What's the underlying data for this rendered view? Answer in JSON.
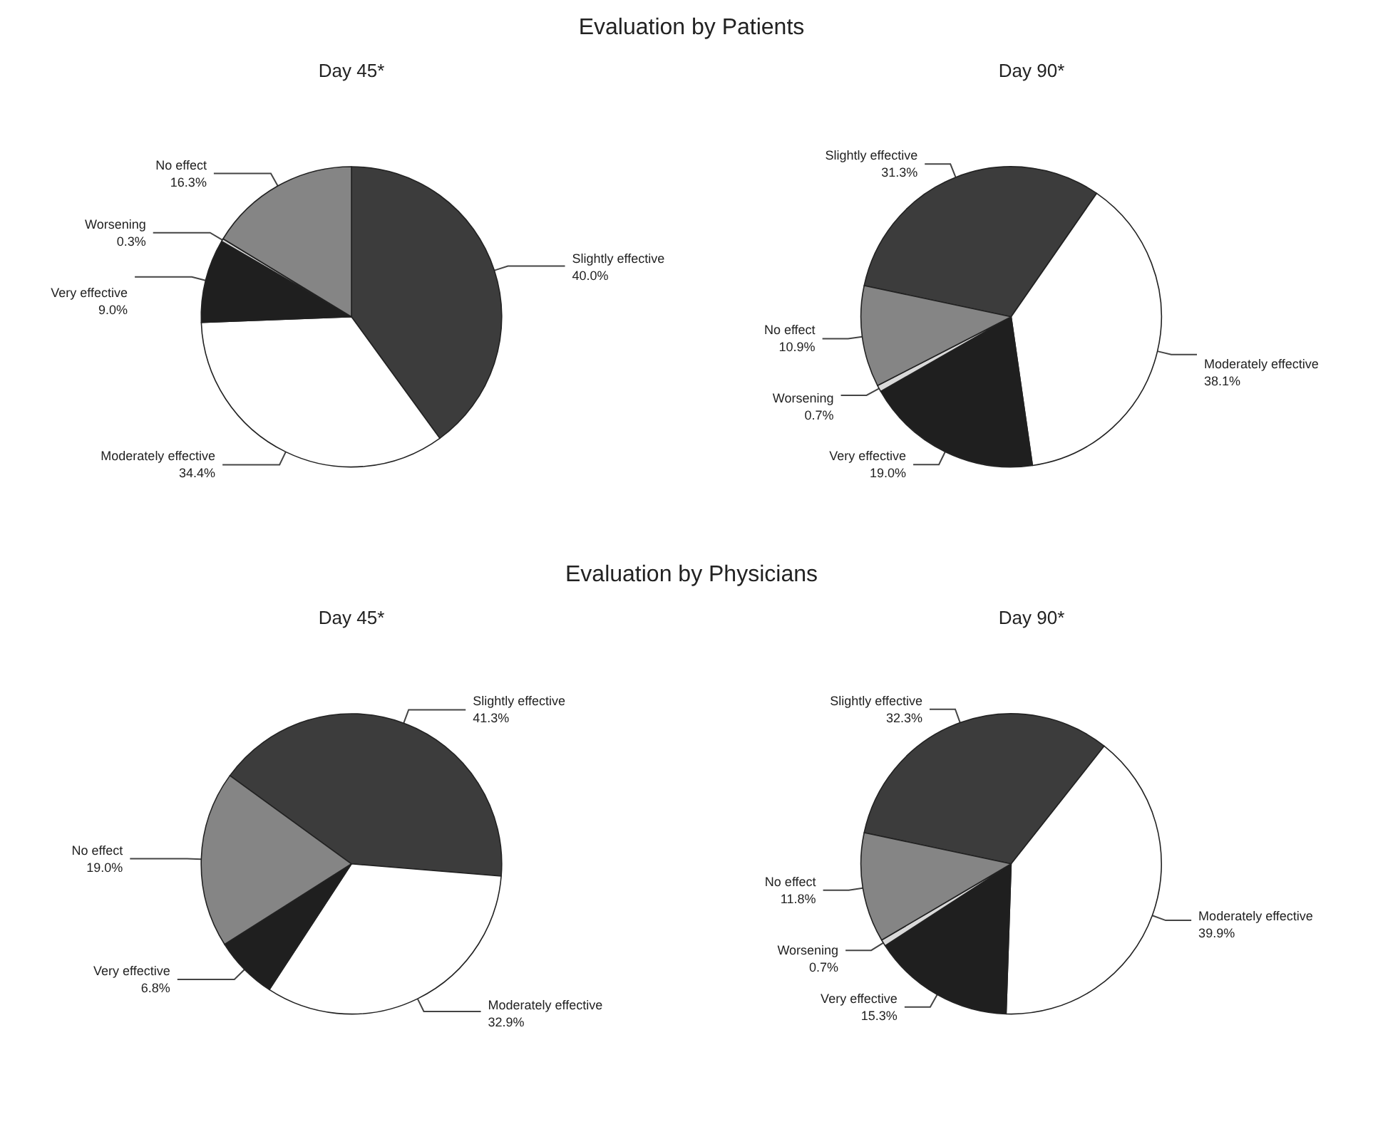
{
  "chart_data": [
    {
      "type": "pie",
      "title": "Day 45*",
      "annotations": [
        "Evaluation by Patients"
      ],
      "categories": [
        "Slightly effective",
        "Moderately effective",
        "Very effective",
        "Worsening",
        "No effect"
      ],
      "values": [
        40.0,
        34.4,
        9.0,
        0.3,
        16.3
      ],
      "value_labels": [
        "40.0%",
        "34.4%",
        "9.0%",
        "0.3%",
        "16.3%"
      ],
      "colors": [
        "#3c3c3c",
        "#ffffff",
        "#1f1f1f",
        "#d9d9d9",
        "#858585"
      ]
    },
    {
      "type": "pie",
      "title": "Day 90*",
      "categories": [
        "Slightly effective",
        "Moderately effective",
        "Very effective",
        "Worsening",
        "No effect"
      ],
      "values": [
        31.3,
        38.1,
        19.0,
        0.7,
        10.9
      ],
      "value_labels": [
        "31.3%",
        "38.1%",
        "19.0%",
        "0.7%",
        "10.9%"
      ],
      "colors": [
        "#3c3c3c",
        "#ffffff",
        "#1f1f1f",
        "#d9d9d9",
        "#858585"
      ]
    },
    {
      "type": "pie",
      "title": "Day 45*",
      "annotations": [
        "Evaluation by Physicians"
      ],
      "categories": [
        "Slightly effective",
        "Moderately effective",
        "Very effective",
        "No effect"
      ],
      "values": [
        41.3,
        32.9,
        6.8,
        19.0
      ],
      "value_labels": [
        "41.3%",
        "32.9%",
        "6.8%",
        "19.0%"
      ],
      "colors": [
        "#3c3c3c",
        "#ffffff",
        "#1f1f1f",
        "#858585"
      ]
    },
    {
      "type": "pie",
      "title": "Day 90*",
      "categories": [
        "Slightly effective",
        "Moderately effective",
        "Very effective",
        "Worsening",
        "No effect"
      ],
      "values": [
        32.3,
        39.9,
        15.3,
        0.7,
        11.8
      ],
      "value_labels": [
        "32.3%",
        "39.9%",
        "15.3%",
        "0.7%",
        "11.8%"
      ],
      "colors": [
        "#3c3c3c",
        "#ffffff",
        "#1f1f1f",
        "#d9d9d9",
        "#858585"
      ]
    }
  ]
}
